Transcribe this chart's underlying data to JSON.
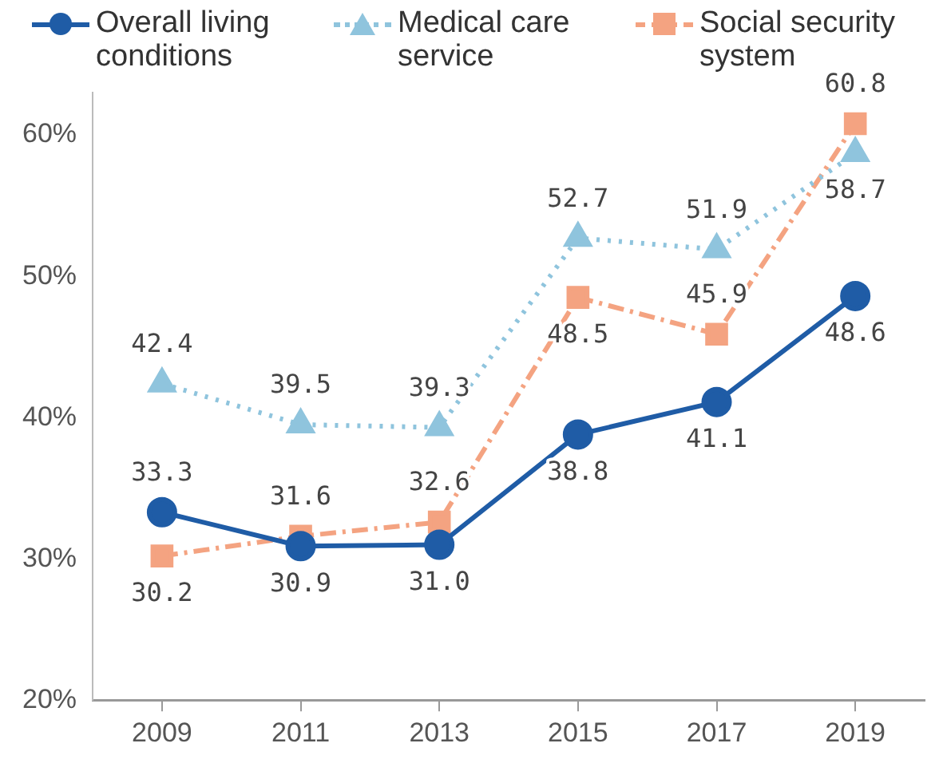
{
  "chart_data": {
    "type": "line",
    "categories": [
      "2009",
      "2011",
      "2013",
      "2015",
      "2017",
      "2019"
    ],
    "series": [
      {
        "name": "Overall living conditions",
        "color": "#1f5ca6",
        "marker": "circle",
        "line_style": "solid",
        "values": [
          33.3,
          30.9,
          31.0,
          38.8,
          41.1,
          48.6
        ],
        "value_labels": [
          "33.3",
          "30.9",
          "31.0",
          "38.8",
          "41.1",
          "48.6"
        ]
      },
      {
        "name": "Medical care service",
        "color": "#8fc4dd",
        "marker": "triangle",
        "line_style": "dotted",
        "values": [
          42.4,
          39.5,
          39.3,
          52.7,
          51.9,
          58.7
        ],
        "value_labels": [
          "42.4",
          "39.5",
          "39.3",
          "52.7",
          "51.9",
          "58.7"
        ]
      },
      {
        "name": "Social security system",
        "color": "#f4a381",
        "marker": "square",
        "line_style": "dashed",
        "values": [
          30.2,
          31.6,
          32.6,
          48.5,
          45.9,
          60.8
        ],
        "value_labels": [
          "30.2",
          "31.6",
          "32.6",
          "48.5",
          "45.9",
          "60.8"
        ]
      }
    ],
    "ylim": [
      20,
      63
    ],
    "yticks": [
      {
        "value": 20,
        "label": "20%"
      },
      {
        "value": 30,
        "label": "30%"
      },
      {
        "value": 40,
        "label": "40%"
      },
      {
        "value": 50,
        "label": "50%"
      },
      {
        "value": 60,
        "label": "60%"
      }
    ],
    "legend": "top"
  }
}
